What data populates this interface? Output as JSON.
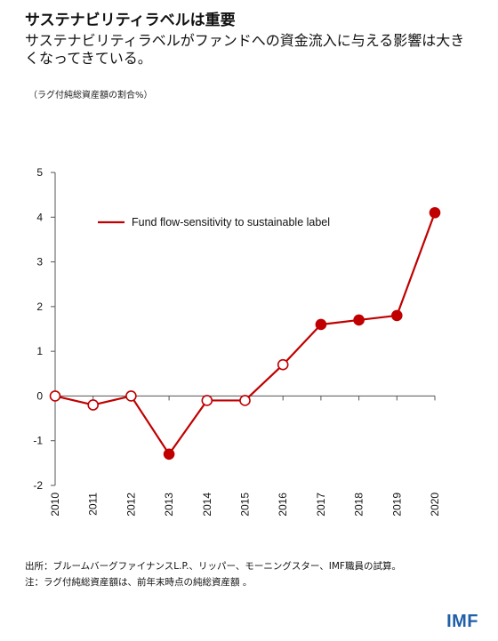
{
  "header": {
    "title": "サステナビリティラベルは重要",
    "subtitle": "サステナビリティラベルがファンドへの資金流入に与える影響は大きくなってきている。",
    "unit_label": "（ラグ付純総資産額の割合%）"
  },
  "chart_data": {
    "type": "line",
    "x": [
      "2010",
      "2011",
      "2012",
      "2013",
      "2014",
      "2015",
      "2016",
      "2017",
      "2018",
      "2019",
      "2020"
    ],
    "series": [
      {
        "name": "Fund flow-sensitivity to sustainable label",
        "values": [
          0,
          -0.2,
          0,
          -1.3,
          -0.1,
          -0.1,
          0.7,
          1.6,
          1.7,
          1.8,
          4.1
        ],
        "significant": [
          false,
          false,
          false,
          true,
          false,
          false,
          false,
          true,
          true,
          true,
          true
        ],
        "color": "#c00000"
      }
    ],
    "ylim": [
      -2,
      5
    ],
    "yticks": [
      5,
      4,
      3,
      2,
      1,
      0,
      -1,
      -2
    ],
    "ytick_labels": [
      "5",
      "4",
      "3",
      "2",
      "1",
      "0",
      "-1",
      "-2"
    ],
    "grid": false,
    "legend": "top-left"
  },
  "footer": {
    "source_note": "出所：ブルームバーグファイナンスL.P.、リッパー、モーニングスター、IMF職員の試算。",
    "note": "注：ラグ付純総資産額は、前年末時点の純総資産額 。",
    "logo_text": "IMF"
  }
}
